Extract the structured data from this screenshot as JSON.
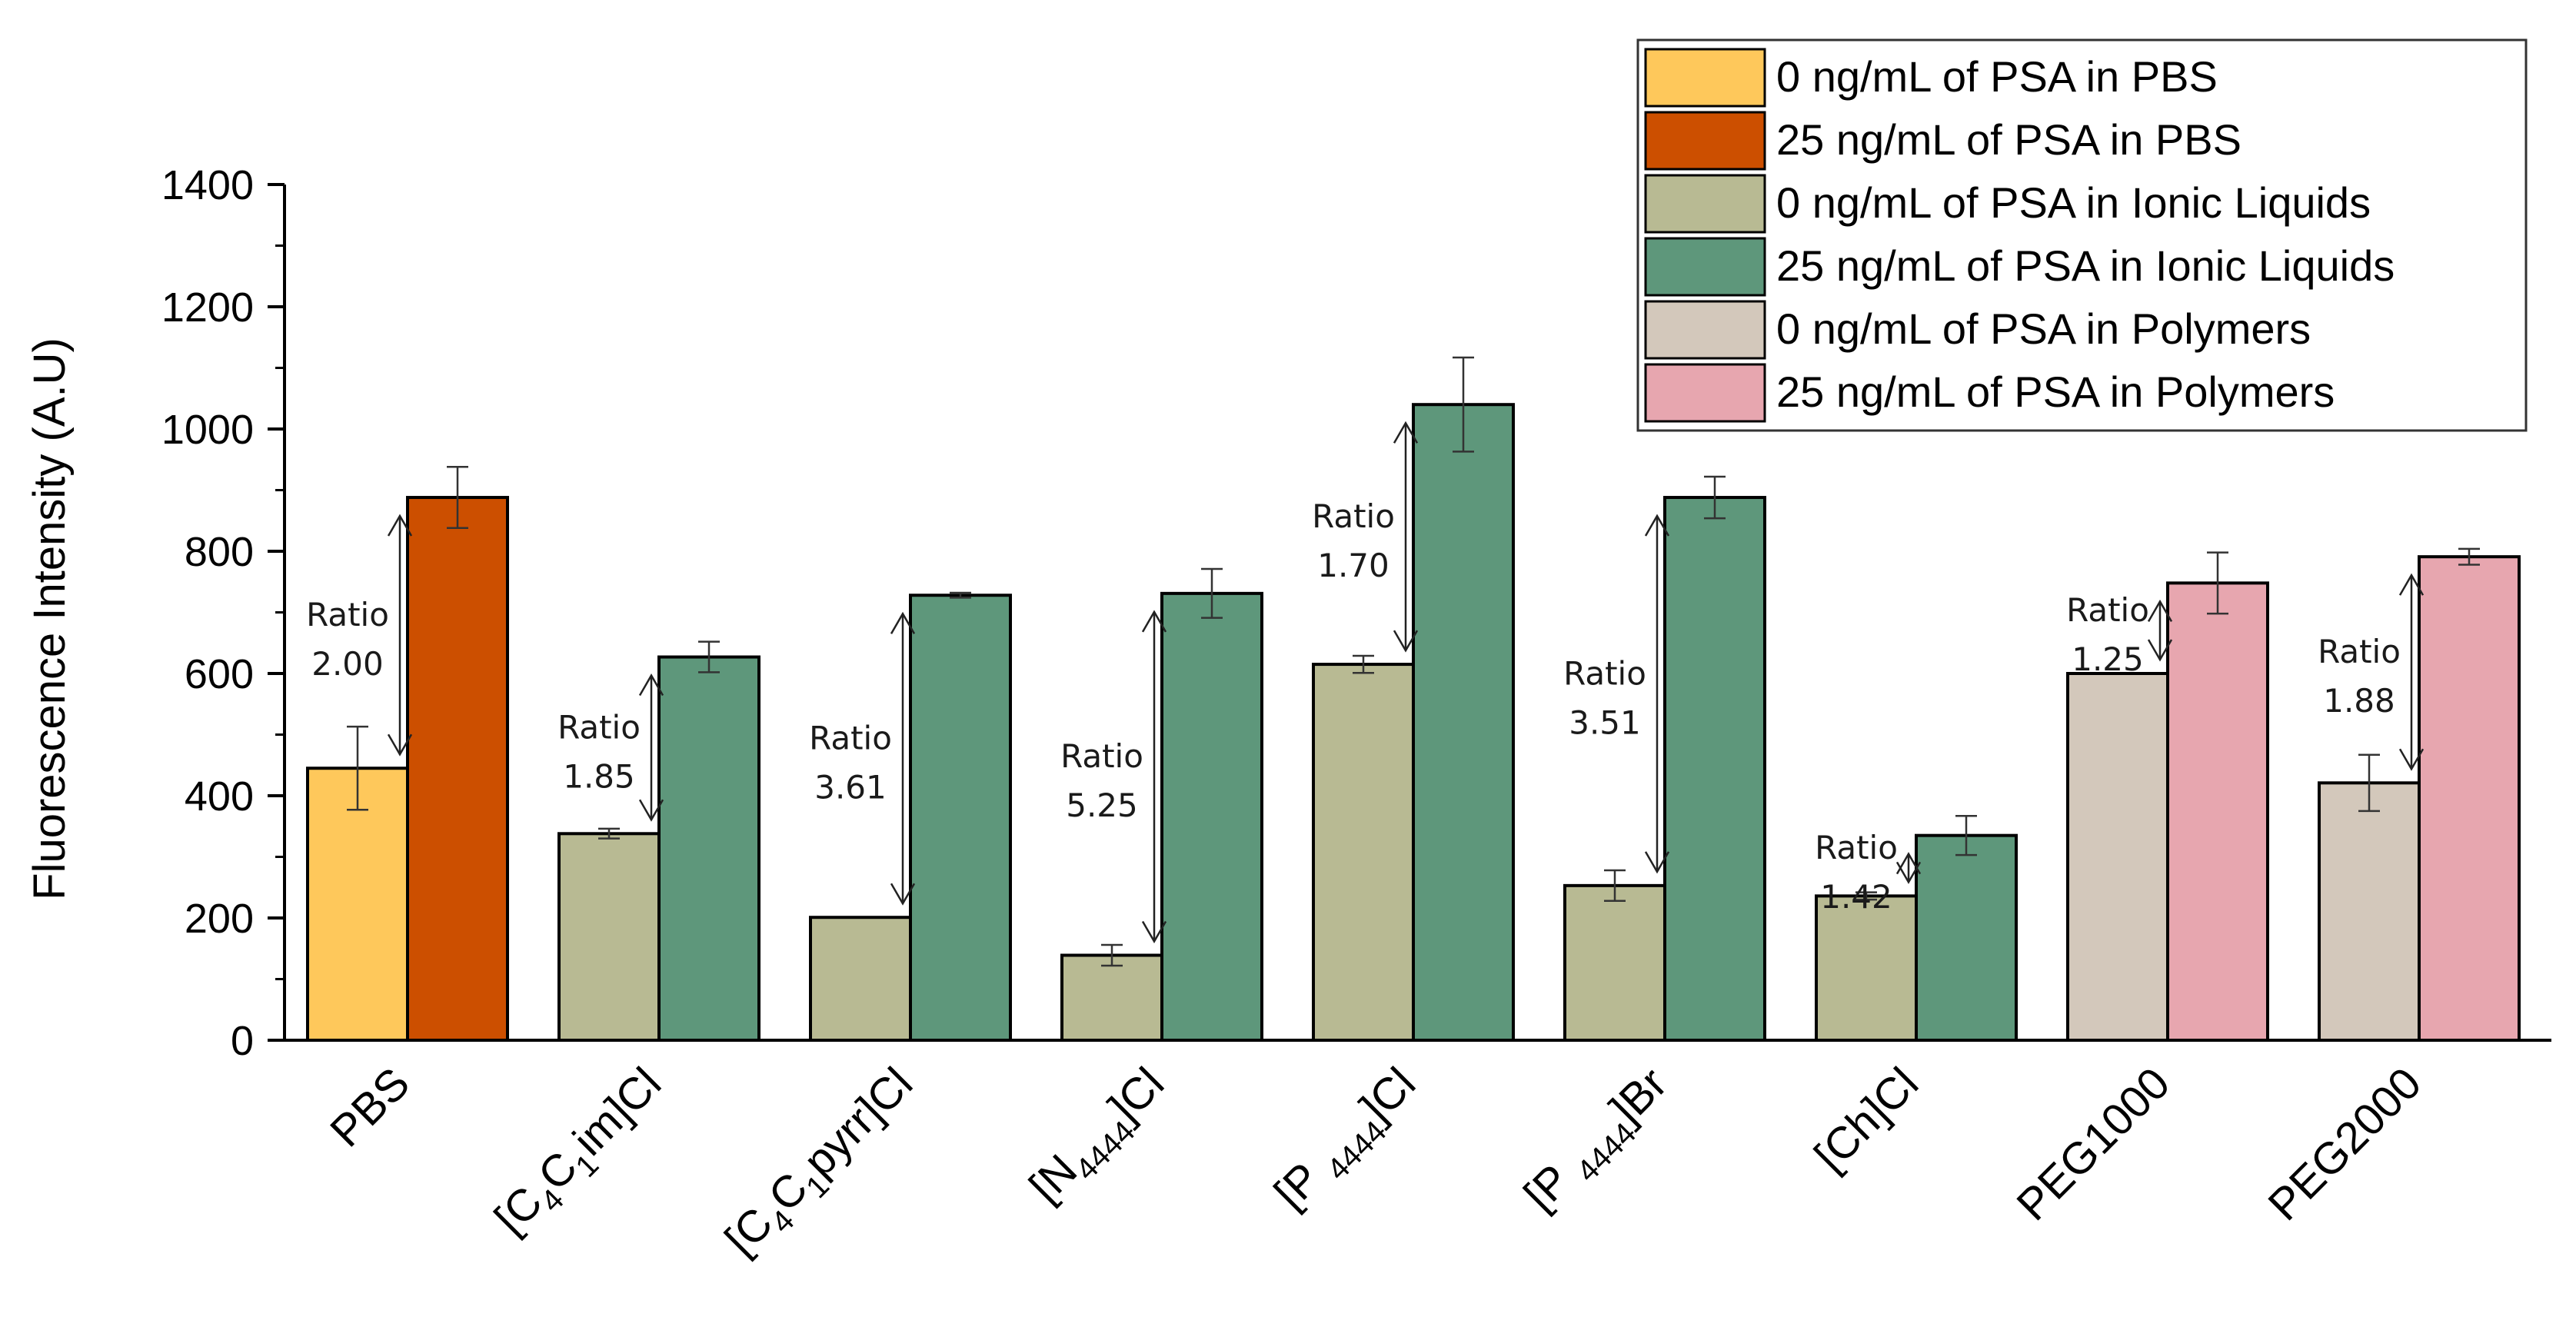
{
  "chart_data": {
    "type": "bar",
    "title": "",
    "xlabel": "",
    "ylabel": "Fluorescence Intensity (A.U)",
    "ylim": [
      0,
      1400
    ],
    "yticks": [
      0,
      200,
      400,
      600,
      800,
      1000,
      1200,
      1400
    ],
    "categories": [
      {
        "main": "PBS",
        "label": "PBS"
      },
      {
        "main": "[C4C1im]Cl",
        "label": "[C4C1im]Cl",
        "parts": [
          [
            "[C",
            ""
          ],
          [
            "4",
            "sub"
          ],
          [
            "C",
            ""
          ],
          [
            "1",
            "sub"
          ],
          [
            "im]Cl",
            ""
          ]
        ]
      },
      {
        "main": "[C4C1pyrr]Cl",
        "label": "[C4C1pyrr]Cl",
        "parts": [
          [
            "[C",
            ""
          ],
          [
            "4",
            "sub"
          ],
          [
            "C",
            ""
          ],
          [
            "1",
            "sub"
          ],
          [
            "pyrr]Cl",
            ""
          ]
        ]
      },
      {
        "main": "[N4444]Cl",
        "label": "[N4444]Cl",
        "parts": [
          [
            "[N",
            ""
          ],
          [
            "4444",
            "sub"
          ],
          [
            "]Cl",
            ""
          ]
        ]
      },
      {
        "main": "[P4444]Cl",
        "label": "[P 4444]Cl",
        "parts": [
          [
            "[P ",
            ""
          ],
          [
            "4444",
            "sub"
          ],
          [
            "]Cl",
            ""
          ]
        ]
      },
      {
        "main": "[P4444]Br",
        "label": "[P 4444]Br",
        "parts": [
          [
            "[P ",
            ""
          ],
          [
            "4444",
            "sub"
          ],
          [
            "]Br",
            ""
          ]
        ]
      },
      {
        "main": "[Ch]Cl",
        "label": "[Ch]Cl"
      },
      {
        "main": "PEG1000",
        "label": "PEG1000"
      },
      {
        "main": "PEG2000",
        "label": "PEG2000"
      }
    ],
    "series": [
      {
        "name": "0 ng/mL of PSA in PBS",
        "color": "#FEC85B"
      },
      {
        "name": "25 ng/mL of PSA in PBS",
        "color": "#CC4F00"
      },
      {
        "name": "0 ng/mL of PSA in Ionic Liquids",
        "color": "#B8BA93"
      },
      {
        "name": "25 ng/mL of PSA in Ionic Liquids",
        "color": "#5E977B"
      },
      {
        "name": "0 ng/mL of PSA in Polymers",
        "color": "#D3C8BB"
      },
      {
        "name": "25 ng/mL of PSA in Polymers",
        "color": "#E7A6AF"
      }
    ],
    "groups": [
      {
        "category": 0,
        "bars": [
          {
            "series": 0,
            "value": 445,
            "err": 68
          },
          {
            "series": 1,
            "value": 888,
            "err": 50
          }
        ],
        "ratio": "2.00"
      },
      {
        "category": 1,
        "bars": [
          {
            "series": 2,
            "value": 338,
            "err": 8
          },
          {
            "series": 3,
            "value": 627,
            "err": 25
          }
        ],
        "ratio": "1.85"
      },
      {
        "category": 2,
        "bars": [
          {
            "series": 2,
            "value": 201,
            "err": 0
          },
          {
            "series": 3,
            "value": 728,
            "err": 4
          }
        ],
        "ratio": "3.61"
      },
      {
        "category": 3,
        "bars": [
          {
            "series": 2,
            "value": 139,
            "err": 17
          },
          {
            "series": 3,
            "value": 731,
            "err": 40
          }
        ],
        "ratio": "5.25"
      },
      {
        "category": 4,
        "bars": [
          {
            "series": 2,
            "value": 615,
            "err": 14
          },
          {
            "series": 3,
            "value": 1040,
            "err": 77
          }
        ],
        "ratio": "1.70"
      },
      {
        "category": 5,
        "bars": [
          {
            "series": 2,
            "value": 253,
            "err": 25
          },
          {
            "series": 3,
            "value": 888,
            "err": 34
          }
        ],
        "ratio": "3.51"
      },
      {
        "category": 6,
        "bars": [
          {
            "series": 2,
            "value": 236,
            "err": 6
          },
          {
            "series": 3,
            "value": 335,
            "err": 32
          }
        ],
        "ratio": "1.42"
      },
      {
        "category": 7,
        "bars": [
          {
            "series": 4,
            "value": 600,
            "err": 0
          },
          {
            "series": 5,
            "value": 748,
            "err": 50
          }
        ],
        "ratio": "1.25"
      },
      {
        "category": 8,
        "bars": [
          {
            "series": 4,
            "value": 421,
            "err": 46
          },
          {
            "series": 5,
            "value": 791,
            "err": 13
          }
        ],
        "ratio": "1.88"
      }
    ],
    "ratio_word": "Ratio",
    "legend_position": "top-right",
    "grid": false
  }
}
